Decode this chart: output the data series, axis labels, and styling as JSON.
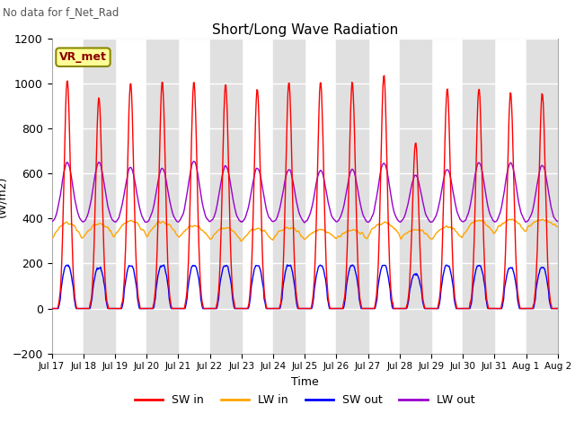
{
  "title": "Short/Long Wave Radiation",
  "subtitle": "No data for f_Net_Rad",
  "ylabel": "(W/m2)",
  "xlabel": "Time",
  "ylim": [
    -200,
    1200
  ],
  "yticks": [
    -200,
    0,
    200,
    400,
    600,
    800,
    1000,
    1200
  ],
  "legend_label": "VR_met",
  "series": [
    "SW in",
    "LW in",
    "SW out",
    "LW out"
  ],
  "colors": {
    "SW in": "#ff0000",
    "LW in": "#ffa500",
    "SW out": "#0000ff",
    "LW out": "#9900cc"
  },
  "n_days": 16,
  "start_day": 17,
  "bg_stripe_color": "#e0e0e0",
  "sw_in_peaks": [
    1020,
    940,
    1005,
    1010,
    1010,
    1000,
    980,
    1010,
    1010,
    1010,
    1040,
    740,
    980,
    980,
    960,
    960
  ],
  "lw_out_peaks": [
    650,
    650,
    630,
    625,
    655,
    635,
    625,
    620,
    615,
    620,
    650,
    595,
    620,
    650,
    650,
    640
  ],
  "lw_in_base": [
    310,
    320,
    330,
    320,
    310,
    305,
    300,
    310,
    310,
    310,
    330,
    310,
    310,
    330,
    340,
    360
  ],
  "lw_in_peaks": [
    410,
    400,
    415,
    415,
    395,
    380,
    380,
    380,
    365,
    365,
    405,
    370,
    385,
    420,
    420,
    410
  ],
  "sw_out_peaks": [
    200,
    190,
    200,
    200,
    200,
    200,
    200,
    200,
    200,
    200,
    200,
    160,
    200,
    200,
    190,
    190
  ]
}
